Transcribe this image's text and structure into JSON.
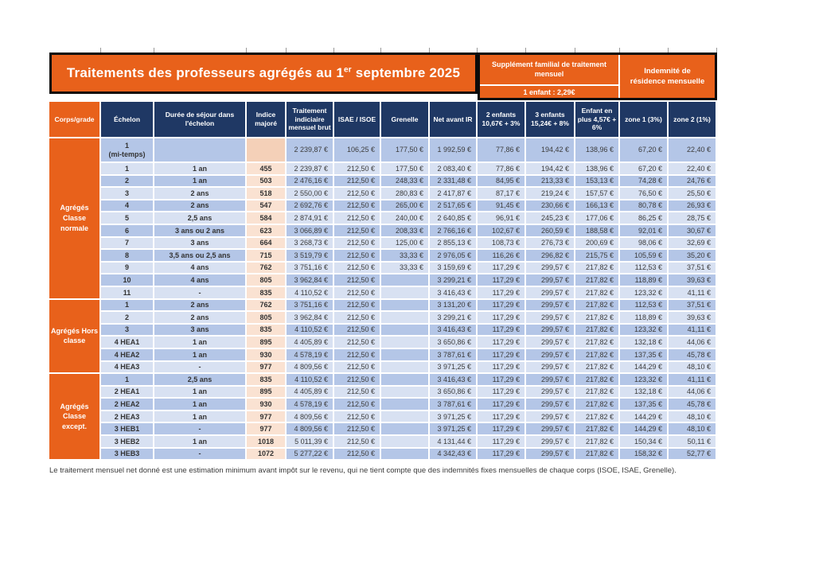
{
  "title": {
    "part1": "Traitements des professeurs agrégés au 1",
    "sup": "er",
    "part2": " septembre 2025"
  },
  "family_supplement": {
    "header": "Supplément familial de traitement mensuel",
    "one_child": "1 enfant : 2,29€"
  },
  "residence": {
    "header": "Indemnité de résidence mensuelle"
  },
  "columns": {
    "corps": "Corps/grade",
    "echelon": "Échelon",
    "duree": "Durée de séjour dans l'échelon",
    "indice": "Indice majoré",
    "brut": "Traitement indiciaire mensuel brut",
    "isae": "ISAE / ISOE",
    "grenelle": "Grenelle",
    "net": "Net avant IR",
    "enf2": "2 enfants 10,67€ + 3%",
    "enf3": "3 enfants 15,24€ + 8%",
    "enfant_plus": "Enfant en plus 4,57€ + 6%",
    "zone1": "zone 1 (3%)",
    "zone2": "zone 2 (1%)"
  },
  "groups": [
    {
      "label": "Agrégés\nClasse\nnormale",
      "rows": [
        {
          "echelon": "1",
          "echelon_line2": "(mi-temps)",
          "duree": "",
          "indice": "",
          "brut": "2 239,87 €",
          "isae": "106,25 €",
          "grenelle": "177,50 €",
          "net": "1 992,59 €",
          "enf2": "77,86 €",
          "enf3": "194,42 €",
          "enfant_plus": "138,96 €",
          "zone1": "67,20 €",
          "zone2": "22,40 €"
        },
        {
          "echelon": "1",
          "duree": "1 an",
          "indice": "455",
          "brut": "2 239,87 €",
          "isae": "212,50 €",
          "grenelle": "177,50 €",
          "net": "2 083,40 €",
          "enf2": "77,86 €",
          "enf3": "194,42 €",
          "enfant_plus": "138,96 €",
          "zone1": "67,20 €",
          "zone2": "22,40 €"
        },
        {
          "echelon": "2",
          "duree": "1 an",
          "indice": "503",
          "brut": "2 476,16 €",
          "isae": "212,50 €",
          "grenelle": "248,33 €",
          "net": "2 331,48 €",
          "enf2": "84,95 €",
          "enf3": "213,33 €",
          "enfant_plus": "153,13 €",
          "zone1": "74,28 €",
          "zone2": "24,76 €"
        },
        {
          "echelon": "3",
          "duree": "2 ans",
          "indice": "518",
          "brut": "2 550,00 €",
          "isae": "212,50 €",
          "grenelle": "280,83 €",
          "net": "2 417,87 €",
          "enf2": "87,17 €",
          "enf3": "219,24 €",
          "enfant_plus": "157,57 €",
          "zone1": "76,50 €",
          "zone2": "25,50 €"
        },
        {
          "echelon": "4",
          "duree": "2 ans",
          "indice": "547",
          "brut": "2 692,76 €",
          "isae": "212,50 €",
          "grenelle": "265,00 €",
          "net": "2 517,65 €",
          "enf2": "91,45 €",
          "enf3": "230,66 €",
          "enfant_plus": "166,13 €",
          "zone1": "80,78 €",
          "zone2": "26,93 €"
        },
        {
          "echelon": "5",
          "duree": "2,5 ans",
          "indice": "584",
          "brut": "2 874,91 €",
          "isae": "212,50 €",
          "grenelle": "240,00 €",
          "net": "2 640,85 €",
          "enf2": "96,91 €",
          "enf3": "245,23 €",
          "enfant_plus": "177,06 €",
          "zone1": "86,25 €",
          "zone2": "28,75 €"
        },
        {
          "echelon": "6",
          "duree": "3 ans ou 2 ans",
          "indice": "623",
          "brut": "3 066,89 €",
          "isae": "212,50 €",
          "grenelle": "208,33 €",
          "net": "2 766,16 €",
          "enf2": "102,67 €",
          "enf3": "260,59 €",
          "enfant_plus": "188,58 €",
          "zone1": "92,01 €",
          "zone2": "30,67 €"
        },
        {
          "echelon": "7",
          "duree": "3 ans",
          "indice": "664",
          "brut": "3 268,73 €",
          "isae": "212,50 €",
          "grenelle": "125,00 €",
          "net": "2 855,13 €",
          "enf2": "108,73 €",
          "enf3": "276,73 €",
          "enfant_plus": "200,69 €",
          "zone1": "98,06 €",
          "zone2": "32,69 €"
        },
        {
          "echelon": "8",
          "duree": "3,5 ans ou 2,5 ans",
          "indice": "715",
          "brut": "3 519,79 €",
          "isae": "212,50 €",
          "grenelle": "33,33 €",
          "net": "2 976,05 €",
          "enf2": "116,26 €",
          "enf3": "296,82 €",
          "enfant_plus": "215,75 €",
          "zone1": "105,59 €",
          "zone2": "35,20 €"
        },
        {
          "echelon": "9",
          "duree": "4 ans",
          "indice": "762",
          "brut": "3 751,16 €",
          "isae": "212,50 €",
          "grenelle": "33,33 €",
          "net": "3 159,69 €",
          "enf2": "117,29 €",
          "enf3": "299,57 €",
          "enfant_plus": "217,82 €",
          "zone1": "112,53 €",
          "zone2": "37,51 €"
        },
        {
          "echelon": "10",
          "duree": "4 ans",
          "indice": "805",
          "brut": "3 962,84 €",
          "isae": "212,50 €",
          "grenelle": "",
          "net": "3 299,21 €",
          "enf2": "117,29 €",
          "enf3": "299,57 €",
          "enfant_plus": "217,82 €",
          "zone1": "118,89 €",
          "zone2": "39,63 €"
        },
        {
          "echelon": "11",
          "duree": "-",
          "indice": "835",
          "brut": "4 110,52 €",
          "isae": "212,50 €",
          "grenelle": "",
          "net": "3 416,43 €",
          "enf2": "117,29 €",
          "enf3": "299,57 €",
          "enfant_plus": "217,82 €",
          "zone1": "123,32 €",
          "zone2": "41,11 €"
        }
      ]
    },
    {
      "label": "Agrégés Hors\nclasse",
      "rows": [
        {
          "echelon": "1",
          "duree": "2 ans",
          "indice": "762",
          "brut": "3 751,16 €",
          "isae": "212,50 €",
          "grenelle": "",
          "net": "3 131,20 €",
          "enf2": "117,29 €",
          "enf3": "299,57 €",
          "enfant_plus": "217,82 €",
          "zone1": "112,53 €",
          "zone2": "37,51 €"
        },
        {
          "echelon": "2",
          "duree": "2 ans",
          "indice": "805",
          "brut": "3 962,84 €",
          "isae": "212,50 €",
          "grenelle": "",
          "net": "3 299,21 €",
          "enf2": "117,29 €",
          "enf3": "299,57 €",
          "enfant_plus": "217,82 €",
          "zone1": "118,89 €",
          "zone2": "39,63 €"
        },
        {
          "echelon": "3",
          "duree": "3 ans",
          "indice": "835",
          "brut": "4 110,52 €",
          "isae": "212,50 €",
          "grenelle": "",
          "net": "3 416,43 €",
          "enf2": "117,29 €",
          "enf3": "299,57 €",
          "enfant_plus": "217,82 €",
          "zone1": "123,32 €",
          "zone2": "41,11 €"
        },
        {
          "echelon": "4 HEA1",
          "duree": "1 an",
          "indice": "895",
          "brut": "4 405,89 €",
          "isae": "212,50 €",
          "grenelle": "",
          "net": "3 650,86 €",
          "enf2": "117,29 €",
          "enf3": "299,57 €",
          "enfant_plus": "217,82 €",
          "zone1": "132,18 €",
          "zone2": "44,06 €"
        },
        {
          "echelon": "4 HEA2",
          "duree": "1 an",
          "indice": "930",
          "brut": "4 578,19 €",
          "isae": "212,50 €",
          "grenelle": "",
          "net": "3 787,61 €",
          "enf2": "117,29 €",
          "enf3": "299,57 €",
          "enfant_plus": "217,82 €",
          "zone1": "137,35 €",
          "zone2": "45,78 €"
        },
        {
          "echelon": "4 HEA3",
          "duree": "-",
          "indice": "977",
          "brut": "4 809,56 €",
          "isae": "212,50 €",
          "grenelle": "",
          "net": "3 971,25 €",
          "enf2": "117,29 €",
          "enf3": "299,57 €",
          "enfant_plus": "217,82 €",
          "zone1": "144,29 €",
          "zone2": "48,10 €"
        }
      ]
    },
    {
      "label": "Agrégés\nClasse\nexcept.",
      "rows": [
        {
          "echelon": "1",
          "duree": "2,5 ans",
          "indice": "835",
          "brut": "4 110,52 €",
          "isae": "212,50 €",
          "grenelle": "",
          "net": "3 416,43 €",
          "enf2": "117,29 €",
          "enf3": "299,57 €",
          "enfant_plus": "217,82 €",
          "zone1": "123,32 €",
          "zone2": "41,11 €"
        },
        {
          "echelon": "2 HEA1",
          "duree": "1 an",
          "indice": "895",
          "brut": "4 405,89 €",
          "isae": "212,50 €",
          "grenelle": "",
          "net": "3 650,86 €",
          "enf2": "117,29 €",
          "enf3": "299,57 €",
          "enfant_plus": "217,82 €",
          "zone1": "132,18 €",
          "zone2": "44,06 €"
        },
        {
          "echelon": "2 HEA2",
          "duree": "1 an",
          "indice": "930",
          "brut": "4 578,19 €",
          "isae": "212,50 €",
          "grenelle": "",
          "net": "3 787,61 €",
          "enf2": "117,29 €",
          "enf3": "299,57 €",
          "enfant_plus": "217,82 €",
          "zone1": "137,35 €",
          "zone2": "45,78 €"
        },
        {
          "echelon": "2 HEA3",
          "duree": "1 an",
          "indice": "977",
          "brut": "4 809,56 €",
          "isae": "212,50 €",
          "grenelle": "",
          "net": "3 971,25 €",
          "enf2": "117,29 €",
          "enf3": "299,57 €",
          "enfant_plus": "217,82 €",
          "zone1": "144,29 €",
          "zone2": "48,10 €"
        },
        {
          "echelon": "3 HEB1",
          "duree": "-",
          "indice": "977",
          "brut": "4 809,56 €",
          "isae": "212,50 €",
          "grenelle": "",
          "net": "3 971,25 €",
          "enf2": "117,29 €",
          "enf3": "299,57 €",
          "enfant_plus": "217,82 €",
          "zone1": "144,29 €",
          "zone2": "48,10 €"
        },
        {
          "echelon": "3 HEB2",
          "duree": "1 an",
          "indice": "1018",
          "brut": "5 011,39 €",
          "isae": "212,50 €",
          "grenelle": "",
          "net": "4 131,44 €",
          "enf2": "117,29 €",
          "enf3": "299,57 €",
          "enfant_plus": "217,82 €",
          "zone1": "150,34 €",
          "zone2": "50,11 €"
        },
        {
          "echelon": "3 HEB3",
          "duree": "-",
          "indice": "1072",
          "brut": "5 277,22 €",
          "isae": "212,50 €",
          "grenelle": "",
          "net": "4 342,43 €",
          "enf2": "117,29 €",
          "enf3": "299,57 €",
          "enfant_plus": "217,82 €",
          "zone1": "158,32 €",
          "zone2": "52,77 €"
        }
      ]
    }
  ],
  "footnote": "Le traitement mensuel net donné est une estimation minimum avant impôt sur le revenu, qui ne tient compte que des indemnités fixes mensuelles de chaque corps (ISOE, ISAE, Grenelle).",
  "colors": {
    "orange": "#E8611B",
    "navy": "#1F3864",
    "row_dark": "#B4C6E7",
    "row_light": "#D8E1F2",
    "peach": "#FAE2D2",
    "peach_dark": "#F4D0B8"
  }
}
